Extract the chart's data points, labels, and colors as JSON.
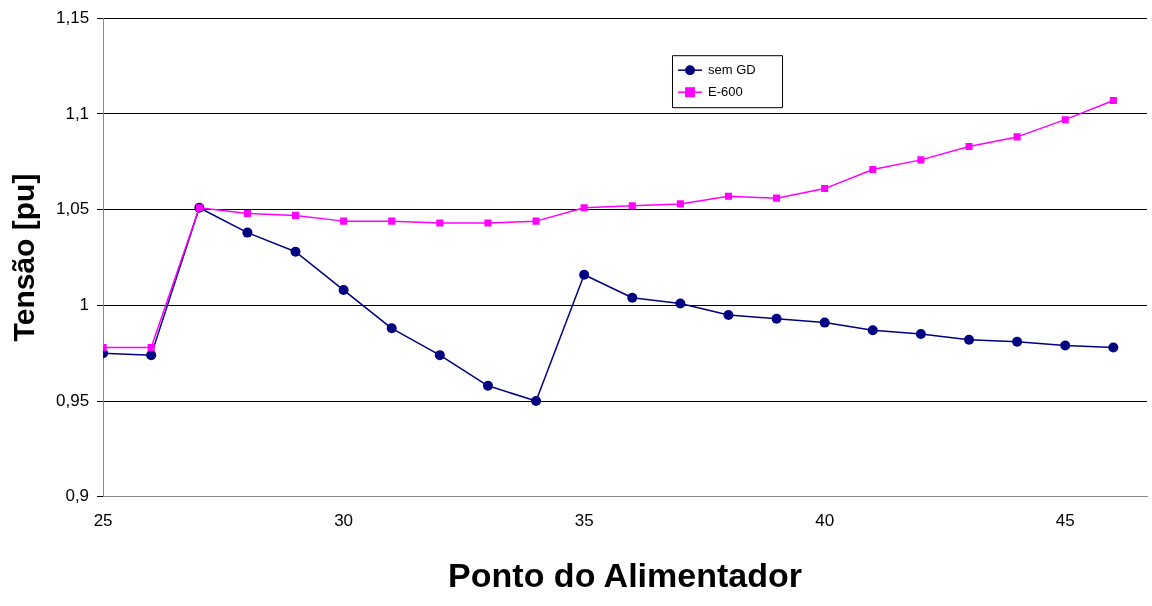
{
  "chart_data": {
    "type": "line",
    "xlabel": "Ponto do Alimentador",
    "ylabel": "Tensão [pu]",
    "xlim": [
      25,
      46.7
    ],
    "xticks": [
      25,
      30,
      35,
      40,
      45
    ],
    "ylim": [
      0.9,
      1.15
    ],
    "yticks": [
      {
        "value": 0.9,
        "label": "0,9"
      },
      {
        "value": 0.95,
        "label": "0,95"
      },
      {
        "value": 1,
        "label": "1"
      },
      {
        "value": 1.05,
        "label": "1,05"
      },
      {
        "value": 1.1,
        "label": "1,1"
      },
      {
        "value": 1.15,
        "label": "1,15"
      }
    ],
    "grid": "y",
    "legend": "top",
    "line_style": "solid",
    "x": [
      25,
      26,
      27,
      28,
      29,
      30,
      31,
      32,
      33,
      34,
      35,
      36,
      37,
      38,
      39,
      40,
      41,
      42,
      43,
      44,
      45,
      46
    ],
    "series": [
      {
        "name": "sem GD",
        "color": "#000080",
        "marker": "circle",
        "values": [
          0.975,
          0.974,
          1.051,
          1.038,
          1.028,
          1.008,
          0.988,
          0.974,
          0.958,
          0.95,
          1.016,
          1.004,
          1.001,
          0.995,
          0.993,
          0.991,
          0.987,
          0.985,
          0.982,
          0.981,
          0.979,
          0.978
        ]
      },
      {
        "name": "E-600",
        "color": "#ff00ff",
        "marker": "square",
        "values": [
          0.978,
          0.978,
          1.051,
          1.048,
          1.047,
          1.044,
          1.044,
          1.043,
          1.043,
          1.044,
          1.051,
          1.052,
          1.053,
          1.057,
          1.056,
          1.061,
          1.071,
          1.076,
          1.083,
          1.088,
          1.097,
          1.107
        ]
      }
    ]
  }
}
